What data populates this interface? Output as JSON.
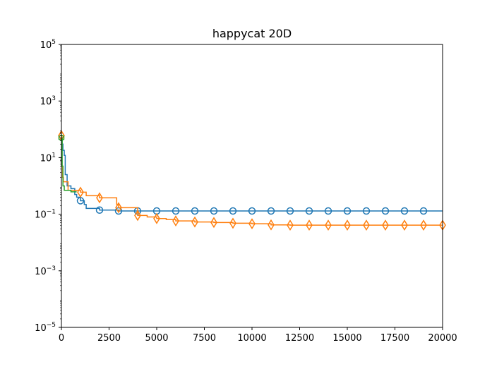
{
  "chart_data": {
    "type": "line",
    "title": "happycat 20D",
    "xlabel": "",
    "ylabel": "",
    "xlim": [
      0,
      20000
    ],
    "ylim": [
      1e-05,
      100000.0
    ],
    "yscale": "log",
    "grid": false,
    "x_ticks": [
      0,
      2500,
      5000,
      7500,
      10000,
      12500,
      15000,
      17500,
      20000
    ],
    "y_tick_exponents": [
      -5,
      -3,
      -1,
      1,
      3,
      5
    ],
    "series": [
      {
        "color": "#1f77b4",
        "marker": "circle",
        "points": [
          [
            0,
            50
          ],
          [
            40,
            30
          ],
          [
            80,
            18
          ],
          [
            150,
            12
          ],
          [
            200,
            2.5
          ],
          [
            300,
            1.0
          ],
          [
            450,
            1.0
          ],
          [
            500,
            0.8
          ],
          [
            700,
            0.5
          ],
          [
            800,
            0.4
          ],
          [
            1000,
            0.3
          ],
          [
            1200,
            0.22
          ],
          [
            1300,
            0.16
          ],
          [
            2000,
            0.14
          ],
          [
            3000,
            0.13
          ],
          [
            20000,
            0.13
          ]
        ],
        "markers_x": [
          1000,
          2000,
          3000,
          4000,
          5000,
          6000,
          7000,
          8000,
          9000,
          10000,
          11000,
          12000,
          13000,
          14000,
          15000,
          16000,
          17000,
          18000,
          19000
        ]
      },
      {
        "color": "#ff7f0e",
        "marker": "diamond",
        "points": [
          [
            0,
            60
          ],
          [
            30,
            5
          ],
          [
            60,
            2
          ],
          [
            100,
            1.4
          ],
          [
            300,
            1.4
          ],
          [
            350,
            0.7
          ],
          [
            1000,
            0.6
          ],
          [
            1300,
            0.45
          ],
          [
            2000,
            0.38
          ],
          [
            2900,
            0.22
          ],
          [
            3000,
            0.17
          ],
          [
            4000,
            0.09
          ],
          [
            4500,
            0.08
          ],
          [
            5000,
            0.07
          ],
          [
            5500,
            0.065
          ],
          [
            6000,
            0.058
          ],
          [
            7000,
            0.053
          ],
          [
            8000,
            0.051
          ],
          [
            9000,
            0.048
          ],
          [
            10000,
            0.046
          ],
          [
            11000,
            0.042
          ],
          [
            12000,
            0.041
          ],
          [
            20000,
            0.041
          ]
        ],
        "markers_x": [
          0,
          1000,
          2000,
          3000,
          4000,
          5000,
          6000,
          7000,
          8000,
          9000,
          10000,
          11000,
          12000,
          13000,
          14000,
          15000,
          16000,
          17000,
          18000,
          19000,
          20000
        ]
      },
      {
        "color": "#2ca02c",
        "marker": "hexagon",
        "points": [
          [
            0,
            50
          ],
          [
            40,
            5
          ],
          [
            80,
            1.0
          ],
          [
            150,
            0.7
          ],
          [
            400,
            0.7
          ],
          [
            500,
            0.62
          ],
          [
            800,
            0.62
          ]
        ],
        "markers_x": [
          0
        ]
      }
    ]
  }
}
